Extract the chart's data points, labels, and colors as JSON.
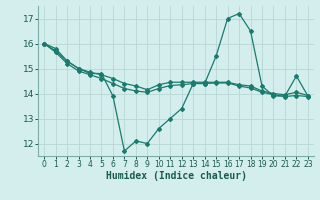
{
  "xlabel": "Humidex (Indice chaleur)",
  "x": [
    0,
    1,
    2,
    3,
    4,
    5,
    6,
    7,
    8,
    9,
    10,
    11,
    12,
    13,
    14,
    15,
    16,
    17,
    18,
    19,
    20,
    21,
    22,
    23
  ],
  "line1": [
    16.0,
    15.8,
    15.3,
    15.0,
    14.8,
    14.8,
    13.9,
    11.7,
    12.1,
    12.0,
    12.6,
    13.0,
    13.4,
    14.4,
    14.4,
    15.5,
    17.0,
    17.2,
    16.5,
    14.3,
    13.9,
    13.9,
    14.7,
    13.9
  ],
  "line2": [
    16.0,
    15.7,
    15.3,
    15.0,
    14.85,
    14.75,
    14.6,
    14.4,
    14.3,
    14.15,
    14.35,
    14.45,
    14.45,
    14.45,
    14.45,
    14.45,
    14.45,
    14.35,
    14.3,
    14.1,
    14.0,
    13.95,
    14.05,
    13.92
  ],
  "line3": [
    16.0,
    15.65,
    15.2,
    14.9,
    14.75,
    14.6,
    14.4,
    14.2,
    14.1,
    14.05,
    14.2,
    14.32,
    14.35,
    14.4,
    14.4,
    14.42,
    14.42,
    14.3,
    14.22,
    14.05,
    13.95,
    13.88,
    13.92,
    13.88
  ],
  "line_color": "#1a7a6e",
  "bg_color": "#d4eeed",
  "grid_color": "#b8d8d5",
  "ylim": [
    11.5,
    17.5
  ],
  "yticks": [
    12,
    13,
    14,
    15,
    16,
    17
  ],
  "xticks": [
    0,
    1,
    2,
    3,
    4,
    5,
    6,
    7,
    8,
    9,
    10,
    11,
    12,
    13,
    14,
    15,
    16,
    17,
    18,
    19,
    20,
    21,
    22,
    23
  ]
}
